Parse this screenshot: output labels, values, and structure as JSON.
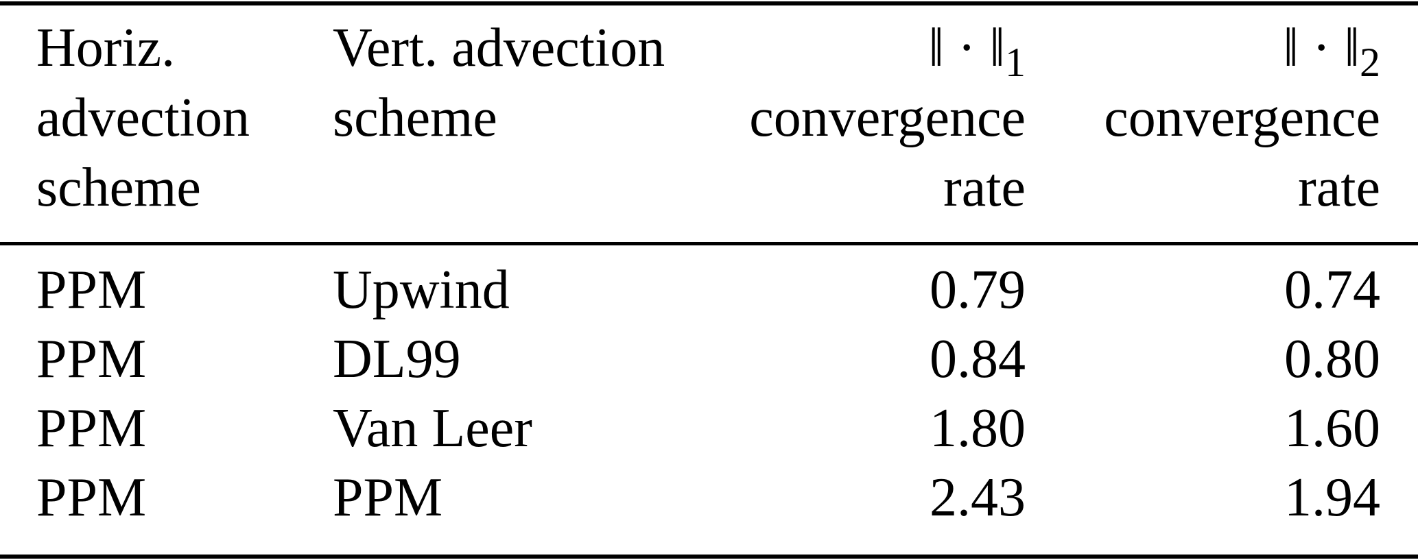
{
  "colors": {
    "background": "#ffffff",
    "text": "#000000",
    "rule": "#000000"
  },
  "table": {
    "header": {
      "horiz_col_lines": [
        "Horiz.",
        "advection",
        "scheme"
      ],
      "vert_col_lines": [
        "Vert. advection",
        "scheme"
      ],
      "l1_col": {
        "norm_symbol": "‖ · ‖",
        "norm_subscript": "1",
        "lines": [
          "convergence",
          "rate"
        ]
      },
      "l2_col": {
        "norm_symbol": "‖ · ‖",
        "norm_subscript": "2",
        "lines": [
          "convergence",
          "rate"
        ]
      }
    },
    "rows": [
      {
        "horiz_scheme": "PPM",
        "vert_scheme": "Upwind",
        "l1_rate": "0.79",
        "l2_rate": "0.74"
      },
      {
        "horiz_scheme": "PPM",
        "vert_scheme": "DL99",
        "l1_rate": "0.84",
        "l2_rate": "0.80"
      },
      {
        "horiz_scheme": "PPM",
        "vert_scheme": "Van Leer",
        "l1_rate": "1.80",
        "l2_rate": "1.60"
      },
      {
        "horiz_scheme": "PPM",
        "vert_scheme": "PPM",
        "l1_rate": "2.43",
        "l2_rate": "1.94"
      }
    ]
  }
}
